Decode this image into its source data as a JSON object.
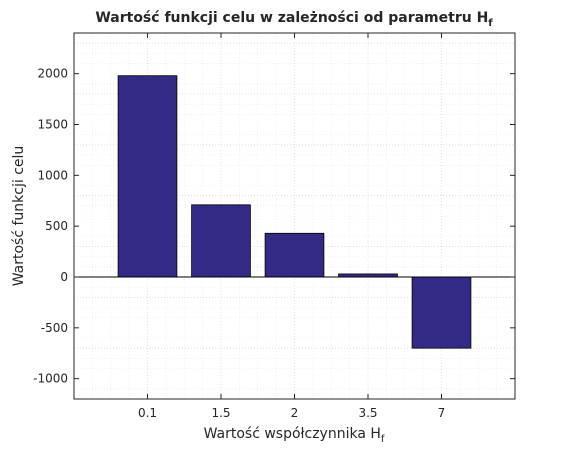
{
  "chart_data": {
    "type": "bar",
    "title": "Wartość funkcji celu w zależności od parametru H",
    "title_subscript": "f",
    "xlabel": "Wartość współczynnika H",
    "xlabel_subscript": "f",
    "ylabel": "Wartość funkcji celu",
    "categories": [
      "0.1",
      "1.5",
      "2",
      "3.5",
      "7"
    ],
    "values": [
      1980,
      710,
      430,
      30,
      -700
    ],
    "ylim": [
      -1200,
      2400
    ],
    "yticks": [
      -1000,
      -500,
      0,
      500,
      1000,
      1500,
      2000
    ],
    "grid": true,
    "minor_grid": true,
    "colors": {
      "bar": "#332a86",
      "bar_edge": "#000000",
      "axes": "#262626",
      "grid": "#d9d9d9"
    }
  }
}
